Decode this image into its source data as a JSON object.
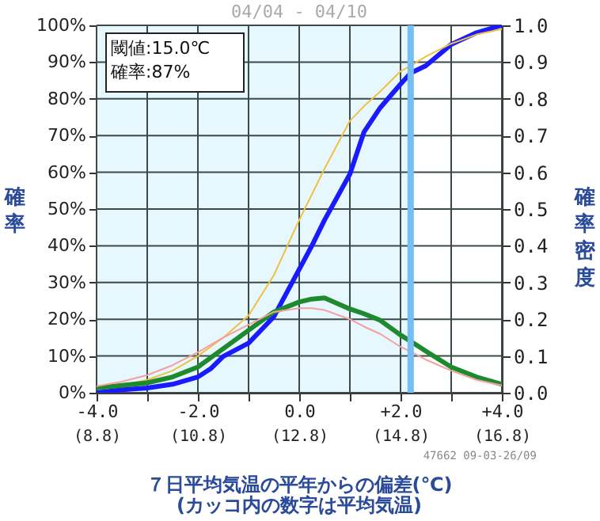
{
  "chart_data": {
    "type": "line",
    "title": "04/04 - 04/10",
    "xlabel": "７日平均気温の平年からの偏差(℃)\n(カッコ内の数字は平均気温)",
    "ylabel": "確率",
    "y2label": "確率密度",
    "x": [
      -4,
      -3.5,
      -3,
      -2.5,
      -2,
      -1.75,
      -1.5,
      -1,
      -0.5,
      0,
      0.25,
      0.5,
      1,
      1.28,
      1.6,
      2,
      2.2,
      2.5,
      3,
      3.5,
      4
    ],
    "series": [
      {
        "color": "#1a1aff",
        "values": [
          0,
          0.8,
          1.3,
          2.3,
          4.3,
          6.5,
          9.9,
          13.5,
          20.7,
          33.6,
          40,
          47,
          59.5,
          71,
          77.6,
          84,
          87,
          89,
          94.8,
          98,
          100
        ]
      },
      {
        "color": "#f0c040",
        "values": [
          1,
          2,
          3.5,
          6,
          10,
          12.5,
          15,
          21,
          32,
          47,
          54,
          61,
          74,
          78,
          82,
          87.5,
          89,
          91.5,
          95,
          97.5,
          99
        ]
      },
      {
        "color": "#1e8a2e",
        "axis": "y2",
        "values": [
          0.013,
          0.02,
          0.027,
          0.043,
          0.07,
          0.095,
          0.12,
          0.17,
          0.22,
          0.247,
          0.255,
          0.258,
          0.228,
          0.215,
          0.197,
          0.157,
          0.14,
          0.113,
          0.07,
          0.043,
          0.023
        ]
      },
      {
        "color": "#f4a0a0",
        "axis": "y2",
        "values": [
          0.018,
          0.03,
          0.048,
          0.075,
          0.11,
          0.13,
          0.15,
          0.185,
          0.22,
          0.23,
          0.23,
          0.225,
          0.2,
          0.18,
          0.16,
          0.125,
          0.112,
          0.09,
          0.06,
          0.035,
          0.02
        ]
      }
    ],
    "xlim": [
      -4,
      4
    ],
    "xticks": [
      {
        "value": -4,
        "label": "-4.0"
      },
      {
        "value": -3,
        "label": null
      },
      {
        "value": -2,
        "label": "-2.0"
      },
      {
        "value": -1,
        "label": null
      },
      {
        "value": 0,
        "label": "0.0"
      },
      {
        "value": 1,
        "label": null
      },
      {
        "value": 2,
        "label": "+2.0"
      },
      {
        "value": 3,
        "label": null
      },
      {
        "value": 4,
        "label": "+4.0"
      }
    ],
    "x2lim": [
      8.8,
      16.8
    ],
    "x2ticks": [
      {
        "value": 8.8,
        "label": "(8.8)"
      },
      {
        "value": 10.8,
        "label": "(10.8)"
      },
      {
        "value": 12.8,
        "label": "(12.8)"
      },
      {
        "value": 14.8,
        "label": "(14.8)"
      },
      {
        "value": 16.8,
        "label": "(16.8)"
      }
    ],
    "ylim": [
      0,
      100
    ],
    "yticks": [
      {
        "value": 0,
        "label": "0%"
      },
      {
        "value": 10,
        "label": "10%"
      },
      {
        "value": 20,
        "label": "20%"
      },
      {
        "value": 30,
        "label": "30%"
      },
      {
        "value": 40,
        "label": "40%"
      },
      {
        "value": 50,
        "label": "50%"
      },
      {
        "value": 60,
        "label": "60%"
      },
      {
        "value": 70,
        "label": "70%"
      },
      {
        "value": 80,
        "label": "80%"
      },
      {
        "value": 90,
        "label": "90%"
      },
      {
        "value": 100,
        "label": "100%"
      }
    ],
    "y2lim": [
      0,
      1
    ],
    "y2ticks": [
      {
        "value": 0,
        "label": "0.0"
      },
      0.1,
      0.2,
      0.3,
      0.4,
      0.5,
      0.6,
      0.7,
      0.8,
      0.9,
      {
        "value": 1,
        "label": "1.0"
      }
    ],
    "bands": [
      {
        "axis": "x",
        "from": -4,
        "to": 2.2,
        "color": "#e6f7fd"
      }
    ],
    "ref_lines": [
      {
        "axis": "x",
        "value": 2.2,
        "color": "#74bdf5"
      }
    ],
    "annotations": [
      "閾値:15.0℃\n確率:87%",
      "47662 09-03-26/09"
    ],
    "grid": true
  }
}
